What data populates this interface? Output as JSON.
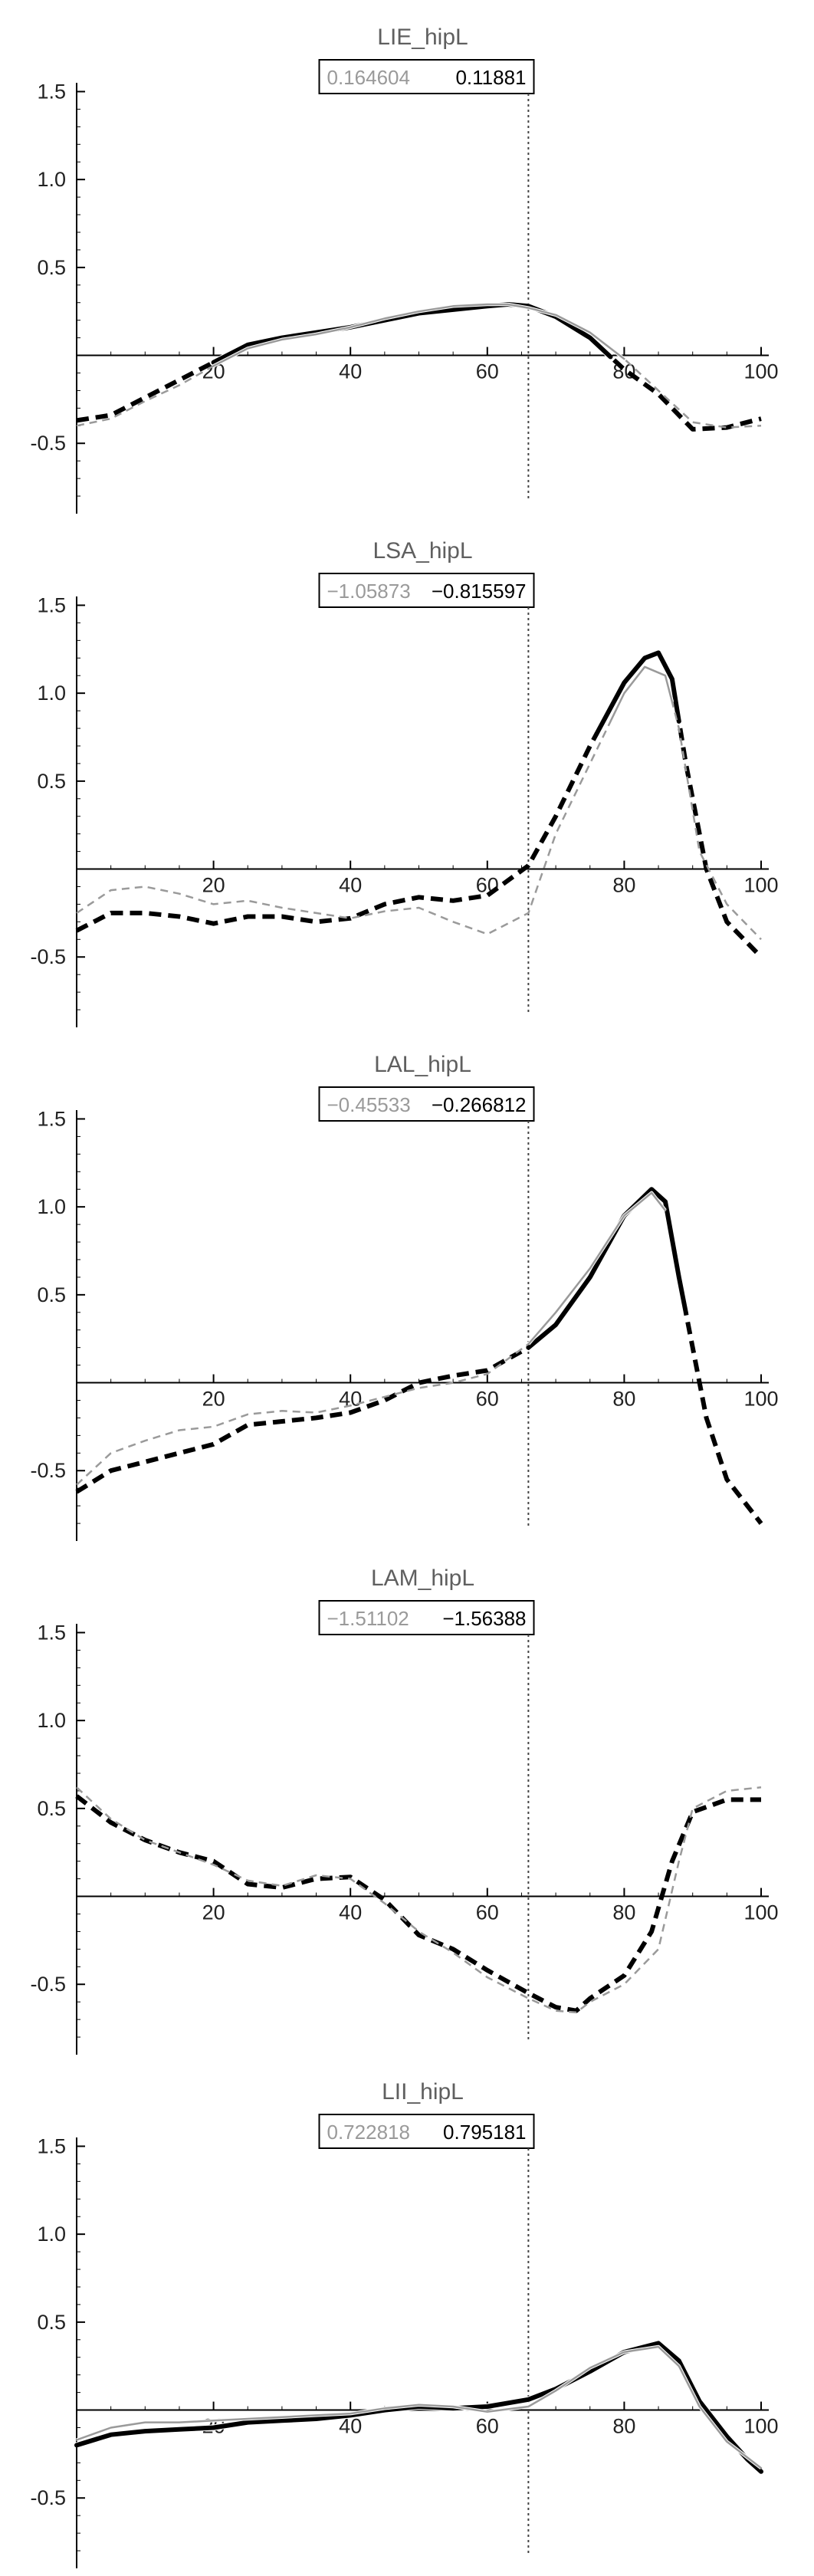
{
  "colors": {
    "axis": "#000000",
    "subject": "#000000",
    "reference": "#9a9a9a",
    "title": "#5f5f5f",
    "vline": "#444444"
  },
  "chart_data": [
    {
      "type": "line",
      "title": "LIE_hipL",
      "legend_values": [
        "0.164604",
        "0.11881"
      ],
      "xlim": [
        0,
        100
      ],
      "ylim": [
        -0.9,
        1.55
      ],
      "xticks": [
        20,
        40,
        60,
        80,
        100
      ],
      "yticks": [
        -0.5,
        0.5,
        1.0,
        1.5
      ],
      "vline_x": 66,
      "series": [
        {
          "style": "subject",
          "points": [
            [
              0,
              -0.37
            ],
            [
              5,
              -0.34
            ],
            [
              10,
              -0.24
            ],
            [
              15,
              -0.14
            ],
            [
              20,
              -0.04
            ],
            [
              25,
              0.06
            ],
            [
              30,
              0.1
            ],
            [
              35,
              0.13
            ],
            [
              40,
              0.16
            ],
            [
              45,
              0.2
            ],
            [
              50,
              0.24
            ],
            [
              55,
              0.26
            ],
            [
              60,
              0.28
            ],
            [
              63,
              0.29
            ],
            [
              66,
              0.28
            ],
            [
              70,
              0.22
            ],
            [
              75,
              0.1
            ],
            [
              80,
              -0.08
            ],
            [
              85,
              -0.22
            ],
            [
              90,
              -0.42
            ],
            [
              95,
              -0.41
            ],
            [
              100,
              -0.36
            ]
          ],
          "solid_ranges": [
            [
              20,
              78
            ]
          ]
        },
        {
          "style": "reference",
          "points": [
            [
              0,
              -0.4
            ],
            [
              5,
              -0.36
            ],
            [
              10,
              -0.26
            ],
            [
              15,
              -0.17
            ],
            [
              20,
              -0.06
            ],
            [
              25,
              0.04
            ],
            [
              30,
              0.09
            ],
            [
              35,
              0.12
            ],
            [
              40,
              0.16
            ],
            [
              45,
              0.21
            ],
            [
              50,
              0.25
            ],
            [
              55,
              0.28
            ],
            [
              60,
              0.29
            ],
            [
              63,
              0.29
            ],
            [
              66,
              0.27
            ],
            [
              70,
              0.23
            ],
            [
              75,
              0.13
            ],
            [
              80,
              -0.02
            ],
            [
              85,
              -0.2
            ],
            [
              90,
              -0.38
            ],
            [
              95,
              -0.41
            ],
            [
              100,
              -0.4
            ]
          ],
          "solid_ranges": [
            [
              20,
              80
            ]
          ]
        }
      ]
    },
    {
      "type": "line",
      "title": "LSA_hipL",
      "legend_values": [
        "−1.05873",
        "−0.815597"
      ],
      "xlim": [
        0,
        100
      ],
      "ylim": [
        -0.9,
        1.55
      ],
      "xticks": [
        20,
        40,
        60,
        80,
        100
      ],
      "yticks": [
        -0.5,
        0.5,
        1.0,
        1.5
      ],
      "vline_x": 66,
      "series": [
        {
          "style": "subject",
          "points": [
            [
              0,
              -0.35
            ],
            [
              5,
              -0.25
            ],
            [
              10,
              -0.25
            ],
            [
              15,
              -0.27
            ],
            [
              20,
              -0.31
            ],
            [
              25,
              -0.27
            ],
            [
              30,
              -0.27
            ],
            [
              35,
              -0.3
            ],
            [
              40,
              -0.28
            ],
            [
              45,
              -0.2
            ],
            [
              50,
              -0.16
            ],
            [
              55,
              -0.18
            ],
            [
              60,
              -0.15
            ],
            [
              66,
              0.02
            ],
            [
              70,
              0.3
            ],
            [
              75,
              0.7
            ],
            [
              80,
              1.06
            ],
            [
              83,
              1.2
            ],
            [
              85,
              1.23
            ],
            [
              87,
              1.08
            ],
            [
              89,
              0.6
            ],
            [
              92,
              0.0
            ],
            [
              95,
              -0.3
            ],
            [
              100,
              -0.5
            ]
          ],
          "solid_ranges": [
            [
              76,
              88
            ]
          ]
        },
        {
          "style": "reference",
          "points": [
            [
              0,
              -0.25
            ],
            [
              5,
              -0.12
            ],
            [
              10,
              -0.1
            ],
            [
              15,
              -0.14
            ],
            [
              20,
              -0.2
            ],
            [
              25,
              -0.18
            ],
            [
              30,
              -0.22
            ],
            [
              35,
              -0.25
            ],
            [
              40,
              -0.28
            ],
            [
              45,
              -0.24
            ],
            [
              50,
              -0.22
            ],
            [
              55,
              -0.3
            ],
            [
              60,
              -0.37
            ],
            [
              66,
              -0.25
            ],
            [
              70,
              0.2
            ],
            [
              75,
              0.6
            ],
            [
              80,
              1.0
            ],
            [
              83,
              1.15
            ],
            [
              86,
              1.1
            ],
            [
              88,
              0.8
            ],
            [
              91,
              0.1
            ],
            [
              95,
              -0.2
            ],
            [
              100,
              -0.4
            ]
          ],
          "solid_ranges": [
            [
              78,
              87
            ]
          ]
        }
      ]
    },
    {
      "type": "line",
      "title": "LAL_hipL",
      "legend_values": [
        "−0.45533",
        "−0.266812"
      ],
      "xlim": [
        0,
        100
      ],
      "ylim": [
        -0.9,
        1.55
      ],
      "xticks": [
        20,
        40,
        60,
        80,
        100
      ],
      "yticks": [
        -0.5,
        0.5,
        1.0,
        1.5
      ],
      "vline_x": 66,
      "series": [
        {
          "style": "subject",
          "points": [
            [
              0,
              -0.62
            ],
            [
              5,
              -0.5
            ],
            [
              10,
              -0.45
            ],
            [
              15,
              -0.4
            ],
            [
              20,
              -0.35
            ],
            [
              25,
              -0.24
            ],
            [
              30,
              -0.22
            ],
            [
              35,
              -0.2
            ],
            [
              40,
              -0.17
            ],
            [
              45,
              -0.1
            ],
            [
              50,
              0.0
            ],
            [
              55,
              0.04
            ],
            [
              60,
              0.07
            ],
            [
              66,
              0.2
            ],
            [
              70,
              0.33
            ],
            [
              75,
              0.6
            ],
            [
              80,
              0.95
            ],
            [
              84,
              1.1
            ],
            [
              86,
              1.03
            ],
            [
              88,
              0.6
            ],
            [
              90,
              0.2
            ],
            [
              92,
              -0.2
            ],
            [
              95,
              -0.55
            ],
            [
              100,
              -0.8
            ]
          ],
          "solid_ranges": [
            [
              66,
              89
            ]
          ]
        },
        {
          "style": "reference",
          "points": [
            [
              0,
              -0.58
            ],
            [
              5,
              -0.4
            ],
            [
              10,
              -0.33
            ],
            [
              15,
              -0.27
            ],
            [
              20,
              -0.25
            ],
            [
              25,
              -0.18
            ],
            [
              30,
              -0.16
            ],
            [
              35,
              -0.17
            ],
            [
              40,
              -0.13
            ],
            [
              45,
              -0.08
            ],
            [
              50,
              -0.03
            ],
            [
              55,
              0.0
            ],
            [
              60,
              0.05
            ],
            [
              66,
              0.22
            ],
            [
              70,
              0.4
            ],
            [
              75,
              0.65
            ],
            [
              80,
              0.95
            ],
            [
              84,
              1.08
            ],
            [
              86,
              0.98
            ]
          ],
          "solid_ranges": [
            [
              66,
              86
            ]
          ]
        }
      ]
    },
    {
      "type": "line",
      "title": "LAM_hipL",
      "legend_values": [
        "−1.51102",
        "−1.56388"
      ],
      "xlim": [
        0,
        100
      ],
      "ylim": [
        -0.9,
        1.55
      ],
      "xticks": [
        20,
        40,
        60,
        80,
        100
      ],
      "yticks": [
        -0.5,
        0.5,
        1.0,
        1.5
      ],
      "vline_x": 66,
      "series": [
        {
          "style": "subject",
          "points": [
            [
              0,
              0.57
            ],
            [
              5,
              0.42
            ],
            [
              10,
              0.32
            ],
            [
              15,
              0.25
            ],
            [
              20,
              0.2
            ],
            [
              25,
              0.07
            ],
            [
              30,
              0.05
            ],
            [
              35,
              0.1
            ],
            [
              40,
              0.11
            ],
            [
              45,
              -0.02
            ],
            [
              50,
              -0.22
            ],
            [
              55,
              -0.3
            ],
            [
              60,
              -0.42
            ],
            [
              66,
              -0.55
            ],
            [
              70,
              -0.63
            ],
            [
              73,
              -0.65
            ],
            [
              75,
              -0.58
            ],
            [
              80,
              -0.45
            ],
            [
              84,
              -0.2
            ],
            [
              87,
              0.2
            ],
            [
              90,
              0.48
            ],
            [
              95,
              0.55
            ],
            [
              100,
              0.55
            ]
          ],
          "solid_ranges": []
        },
        {
          "style": "reference",
          "points": [
            [
              0,
              0.62
            ],
            [
              5,
              0.44
            ],
            [
              10,
              0.32
            ],
            [
              15,
              0.25
            ],
            [
              20,
              0.18
            ],
            [
              25,
              0.09
            ],
            [
              30,
              0.06
            ],
            [
              35,
              0.12
            ],
            [
              40,
              0.1
            ],
            [
              45,
              -0.04
            ],
            [
              50,
              -0.2
            ],
            [
              55,
              -0.32
            ],
            [
              60,
              -0.46
            ],
            [
              66,
              -0.58
            ],
            [
              70,
              -0.65
            ],
            [
              73,
              -0.66
            ],
            [
              75,
              -0.6
            ],
            [
              80,
              -0.5
            ],
            [
              85,
              -0.3
            ],
            [
              88,
              0.2
            ],
            [
              90,
              0.5
            ],
            [
              95,
              0.6
            ],
            [
              100,
              0.62
            ]
          ],
          "solid_ranges": []
        }
      ]
    },
    {
      "type": "line",
      "title": "LII_hipL",
      "legend_values": [
        "0.722818",
        "0.795181"
      ],
      "xlim": [
        0,
        100
      ],
      "ylim": [
        -0.9,
        1.55
      ],
      "xticks": [
        20,
        40,
        60,
        80,
        100
      ],
      "yticks": [
        -0.5,
        0.5,
        1.0,
        1.5
      ],
      "vline_x": 66,
      "series": [
        {
          "style": "subject",
          "points": [
            [
              0,
              -0.2
            ],
            [
              5,
              -0.14
            ],
            [
              10,
              -0.12
            ],
            [
              15,
              -0.11
            ],
            [
              20,
              -0.1
            ],
            [
              25,
              -0.07
            ],
            [
              30,
              -0.06
            ],
            [
              35,
              -0.05
            ],
            [
              40,
              -0.03
            ],
            [
              45,
              0.0
            ],
            [
              50,
              0.02
            ],
            [
              55,
              0.01
            ],
            [
              60,
              0.02
            ],
            [
              66,
              0.06
            ],
            [
              70,
              0.12
            ],
            [
              75,
              0.22
            ],
            [
              80,
              0.33
            ],
            [
              85,
              0.38
            ],
            [
              88,
              0.28
            ],
            [
              91,
              0.05
            ],
            [
              95,
              -0.15
            ],
            [
              98,
              -0.28
            ],
            [
              100,
              -0.35
            ]
          ],
          "solid_ranges": [
            [
              0,
              100
            ]
          ]
        },
        {
          "style": "reference",
          "points": [
            [
              0,
              -0.17
            ],
            [
              5,
              -0.1
            ],
            [
              10,
              -0.07
            ],
            [
              15,
              -0.07
            ],
            [
              20,
              -0.06
            ],
            [
              25,
              -0.05
            ],
            [
              30,
              -0.04
            ],
            [
              35,
              -0.03
            ],
            [
              40,
              -0.02
            ],
            [
              45,
              0.01
            ],
            [
              50,
              0.03
            ],
            [
              55,
              0.02
            ],
            [
              60,
              -0.01
            ],
            [
              66,
              0.02
            ],
            [
              70,
              0.11
            ],
            [
              75,
              0.24
            ],
            [
              80,
              0.33
            ],
            [
              85,
              0.36
            ],
            [
              88,
              0.25
            ],
            [
              91,
              0.02
            ],
            [
              95,
              -0.18
            ],
            [
              100,
              -0.33
            ]
          ],
          "solid_ranges": [
            [
              0,
              100
            ]
          ]
        }
      ]
    }
  ]
}
